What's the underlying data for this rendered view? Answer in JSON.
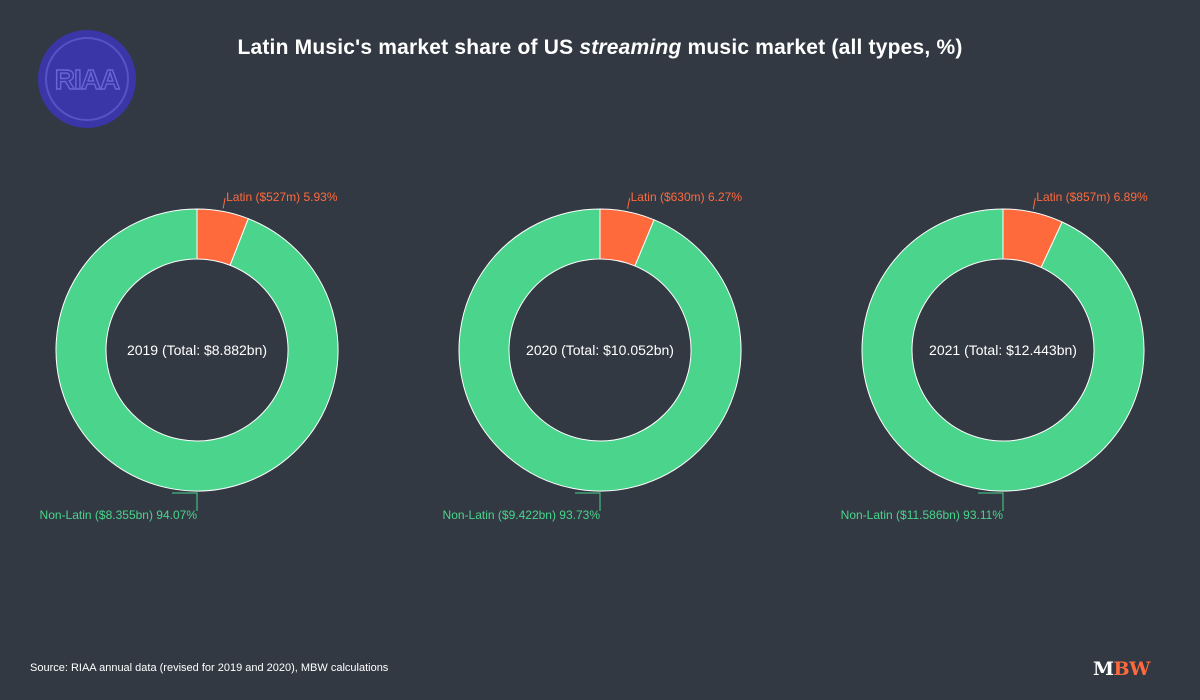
{
  "title": {
    "before": "Latin Music's market share of US ",
    "emphasis": "streaming",
    "after": " music market (all types, %)"
  },
  "logo": {
    "text": "RIAA",
    "color": "#3a36a8"
  },
  "source": "Source: RIAA annual data (revised for 2019 and 2020), MBW calculations",
  "brand": {
    "part1": "M",
    "part2": "BW"
  },
  "colors": {
    "latin": "#ff6a3d",
    "non_latin": "#4ad48c",
    "background": "#333943"
  },
  "chart_data": [
    {
      "type": "pie",
      "center_label": "2019 (Total: $8.882bn)",
      "slices": [
        {
          "name": "Latin",
          "label": "Latin ($527m) 5.93%",
          "value": 5.93,
          "color": "#ff6a3d"
        },
        {
          "name": "Non-Latin",
          "label": "Non-Latin ($8.355bn) 94.07%",
          "value": 94.07,
          "color": "#4ad48c"
        }
      ]
    },
    {
      "type": "pie",
      "center_label": "2020 (Total: $10.052bn)",
      "slices": [
        {
          "name": "Latin",
          "label": "Latin ($630m) 6.27%",
          "value": 6.27,
          "color": "#ff6a3d"
        },
        {
          "name": "Non-Latin",
          "label": "Non-Latin ($9.422bn) 93.73%",
          "value": 93.73,
          "color": "#4ad48c"
        }
      ]
    },
    {
      "type": "pie",
      "center_label": "2021 (Total: $12.443bn)",
      "slices": [
        {
          "name": "Latin",
          "label": "Latin ($857m) 6.89%",
          "value": 6.89,
          "color": "#ff6a3d"
        },
        {
          "name": "Non-Latin",
          "label": "Non-Latin ($11.586bn) 93.11%",
          "value": 93.11,
          "color": "#4ad48c"
        }
      ]
    }
  ]
}
